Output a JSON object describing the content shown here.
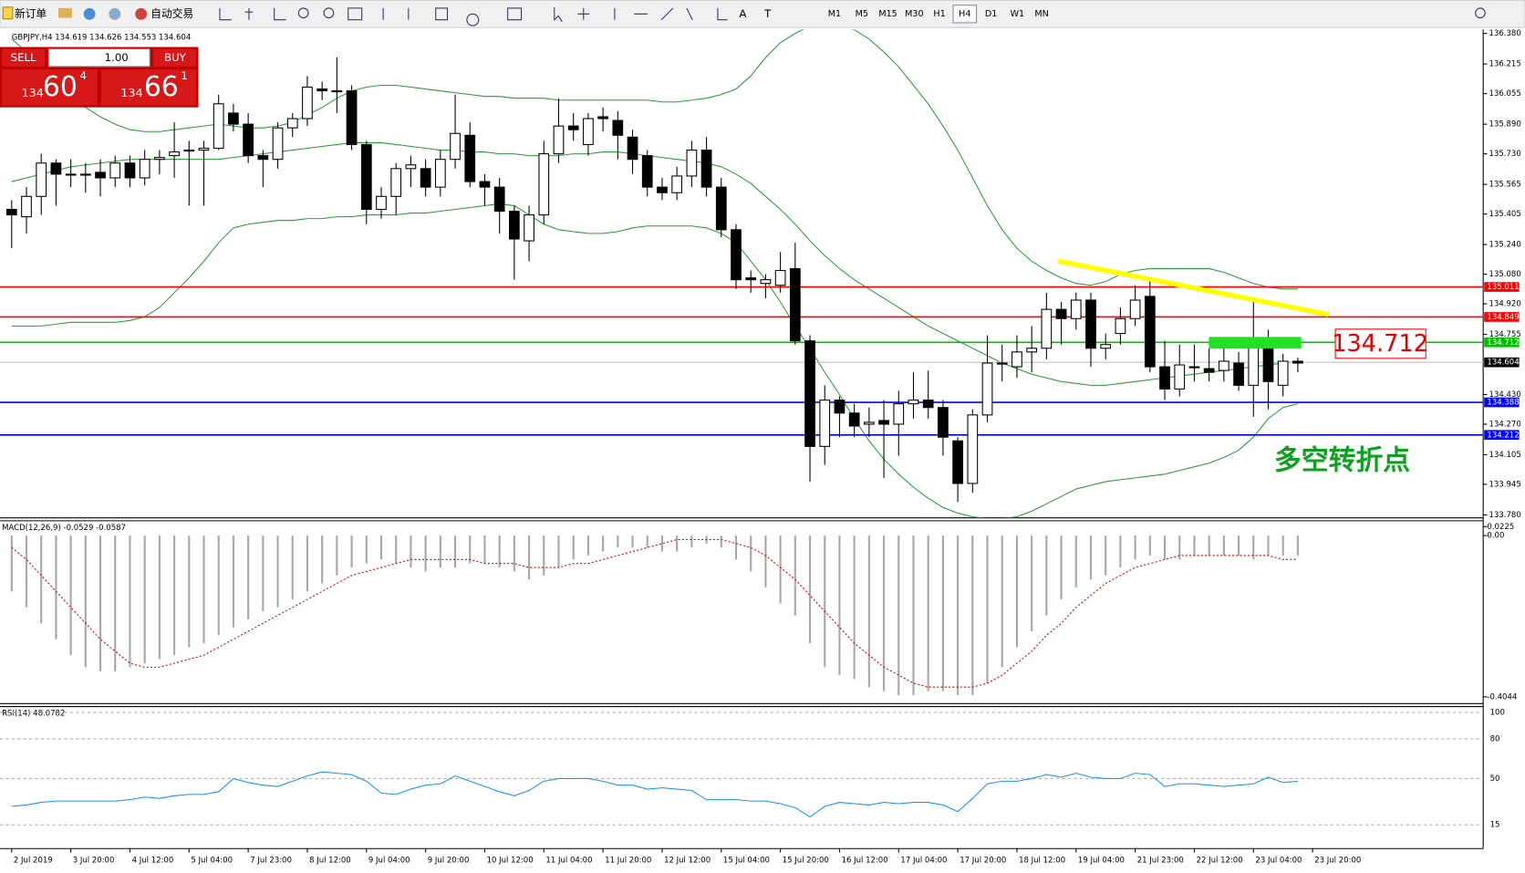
{
  "toolbar": {
    "new_order": "新订单",
    "auto_trading": "自动交易",
    "timeframes": [
      "M1",
      "M5",
      "M15",
      "M30",
      "H1",
      "H4",
      "D1",
      "W1",
      "MN"
    ]
  },
  "chart_header": "GBPJPY,H4  134.619 134.626 134.553 134.604",
  "trade_panel": {
    "sell": "SELL",
    "lots": "1.00",
    "buy": "BUY",
    "bid": {
      "big": "134",
      "pips": "60",
      "frac": "4"
    },
    "ask": {
      "big": "134",
      "pips": "66",
      "frac": "1"
    }
  },
  "price_chart": {
    "ylim": [
      133.78,
      136.38
    ],
    "yticks": [
      {
        "value": 136.38,
        "label": "136.380"
      },
      136.215,
      136.055,
      {
        "value": 135.89,
        "label": "135.890"
      },
      {
        "value": 135.73,
        "label": "135.730"
      },
      135.565,
      135.405,
      {
        "value": 135.24,
        "label": "135.240"
      },
      {
        "value": 135.08,
        "label": "135.080"
      },
      {
        "value": 134.92,
        "label": "134.920"
      },
      134.755,
      {
        "value": 134.43,
        "label": "134.430"
      },
      {
        "value": 134.27,
        "label": "134.270"
      },
      134.105,
      133.945,
      {
        "value": 133.78,
        "label": "133.780"
      }
    ],
    "levels": [
      {
        "value": 135.011,
        "color": "#ff0000"
      },
      {
        "value": 134.849,
        "color": "#ff0000"
      },
      {
        "value": 134.712,
        "color": "#00c000"
      },
      {
        "value": 134.604,
        "color": "#c0c0c0"
      },
      {
        "value": 134.388,
        "color": "#0000ff"
      },
      {
        "value": 134.212,
        "color": "#0000ff"
      }
    ],
    "annotation": "多空转折点",
    "candles": [
      [
        135.43,
        135.48,
        135.22,
        135.4
      ],
      [
        135.39,
        135.55,
        135.3,
        135.5
      ],
      [
        135.5,
        135.73,
        135.4,
        135.68
      ],
      [
        135.68,
        135.7,
        135.45,
        135.62
      ],
      [
        135.62,
        135.7,
        135.55,
        135.62
      ],
      [
        135.62,
        135.68,
        135.52,
        135.62
      ],
      [
        135.63,
        135.7,
        135.5,
        135.6
      ],
      [
        135.6,
        135.72,
        135.55,
        135.68
      ],
      [
        135.68,
        135.72,
        135.55,
        135.6
      ],
      [
        135.6,
        135.75,
        135.56,
        135.7
      ],
      [
        135.7,
        135.75,
        135.62,
        135.71
      ],
      [
        135.72,
        135.9,
        135.6,
        135.74
      ],
      [
        135.75,
        135.8,
        135.45,
        135.75
      ],
      [
        135.75,
        135.8,
        135.45,
        135.76
      ],
      [
        135.76,
        136.05,
        135.75,
        136.0
      ],
      [
        135.95,
        136.0,
        135.85,
        135.89
      ],
      [
        135.89,
        135.95,
        135.68,
        135.72
      ],
      [
        135.72,
        135.75,
        135.55,
        135.7
      ],
      [
        135.7,
        135.9,
        135.65,
        135.87
      ],
      [
        135.87,
        135.95,
        135.82,
        135.92
      ],
      [
        135.92,
        136.15,
        135.88,
        136.09
      ],
      [
        136.08,
        136.12,
        136.02,
        136.07
      ],
      [
        136.07,
        136.25,
        135.95,
        136.07
      ],
      [
        136.07,
        136.1,
        135.75,
        135.78
      ],
      [
        135.78,
        135.8,
        135.35,
        135.43
      ],
      [
        135.43,
        135.55,
        135.38,
        135.5
      ],
      [
        135.5,
        135.68,
        135.4,
        135.65
      ],
      [
        135.65,
        135.72,
        135.55,
        135.67
      ],
      [
        135.65,
        135.7,
        135.5,
        135.55
      ],
      [
        135.55,
        135.75,
        135.5,
        135.7
      ],
      [
        135.7,
        136.05,
        135.65,
        135.84
      ],
      [
        135.83,
        135.9,
        135.55,
        135.58
      ],
      [
        135.58,
        135.62,
        135.45,
        135.55
      ],
      [
        135.55,
        135.6,
        135.3,
        135.42
      ],
      [
        135.42,
        135.45,
        135.05,
        135.27
      ],
      [
        135.26,
        135.45,
        135.15,
        135.4
      ],
      [
        135.4,
        135.8,
        135.35,
        135.73
      ],
      [
        135.73,
        136.03,
        135.68,
        135.88
      ],
      [
        135.88,
        135.95,
        135.8,
        135.86
      ],
      [
        135.78,
        135.95,
        135.72,
        135.92
      ],
      [
        135.93,
        135.98,
        135.85,
        135.92
      ],
      [
        135.91,
        135.96,
        135.7,
        135.83
      ],
      [
        135.82,
        135.86,
        135.62,
        135.7
      ],
      [
        135.72,
        135.75,
        135.5,
        135.55
      ],
      [
        135.55,
        135.6,
        135.48,
        135.52
      ],
      [
        135.52,
        135.66,
        135.48,
        135.61
      ],
      [
        135.61,
        135.8,
        135.55,
        135.75
      ],
      [
        135.75,
        135.82,
        135.5,
        135.55
      ],
      [
        135.55,
        135.6,
        135.28,
        135.32
      ],
      [
        135.32,
        135.35,
        135.0,
        135.05
      ],
      [
        135.06,
        135.1,
        134.98,
        135.05
      ],
      [
        135.03,
        135.08,
        134.95,
        135.05
      ],
      [
        135.02,
        135.2,
        134.98,
        135.1
      ],
      [
        135.11,
        135.25,
        134.7,
        134.72
      ],
      [
        134.72,
        134.75,
        133.96,
        134.15
      ],
      [
        134.15,
        134.48,
        134.05,
        134.4
      ],
      [
        134.4,
        134.42,
        134.2,
        134.33
      ],
      [
        134.33,
        134.38,
        134.2,
        134.26
      ],
      [
        134.27,
        134.36,
        134.2,
        134.28
      ],
      [
        134.29,
        134.4,
        133.98,
        134.27
      ],
      [
        134.27,
        134.45,
        134.1,
        134.38
      ],
      [
        134.38,
        134.55,
        134.3,
        134.4
      ],
      [
        134.4,
        134.56,
        134.3,
        134.36
      ],
      [
        134.36,
        134.4,
        134.1,
        134.2
      ],
      [
        134.18,
        134.2,
        133.85,
        133.95
      ],
      [
        133.95,
        134.35,
        133.9,
        134.32
      ],
      [
        134.32,
        134.75,
        134.28,
        134.6
      ],
      [
        134.6,
        134.7,
        134.5,
        134.6
      ],
      [
        134.58,
        134.75,
        134.52,
        134.66
      ],
      [
        134.66,
        134.8,
        134.55,
        134.68
      ],
      [
        134.68,
        134.98,
        134.62,
        134.89
      ],
      [
        134.89,
        134.93,
        134.7,
        134.84
      ],
      [
        134.84,
        134.98,
        134.78,
        134.94
      ],
      [
        134.94,
        134.98,
        134.58,
        134.68
      ],
      [
        134.68,
        134.76,
        134.62,
        134.7
      ],
      [
        134.76,
        134.9,
        134.7,
        134.84
      ],
      [
        134.84,
        135.02,
        134.8,
        134.94
      ],
      [
        134.96,
        135.05,
        134.55,
        134.58
      ],
      [
        134.58,
        134.72,
        134.4,
        134.46
      ],
      [
        134.46,
        134.7,
        134.42,
        134.59
      ],
      [
        134.58,
        134.7,
        134.5,
        134.58
      ],
      [
        134.57,
        134.68,
        134.5,
        134.55
      ],
      [
        134.56,
        134.72,
        134.5,
        134.61
      ],
      [
        134.6,
        134.66,
        134.45,
        134.48
      ],
      [
        134.48,
        134.93,
        134.31,
        134.7
      ],
      [
        134.7,
        134.78,
        134.35,
        134.5
      ],
      [
        134.48,
        134.65,
        134.42,
        134.61
      ],
      [
        134.61,
        134.63,
        134.55,
        134.6
      ]
    ],
    "bollinger": {
      "color": "#2e9a3e",
      "upper": [
        136.35,
        136.28,
        136.2,
        136.12,
        136.05,
        135.98,
        135.93,
        135.89,
        135.86,
        135.85,
        135.85,
        135.86,
        135.87,
        135.88,
        135.89,
        135.88,
        135.87,
        135.87,
        135.88,
        135.9,
        135.94,
        135.98,
        136.03,
        136.07,
        136.09,
        136.1,
        136.1,
        136.09,
        136.08,
        136.07,
        136.06,
        136.05,
        136.04,
        136.04,
        136.03,
        136.03,
        136.03,
        136.02,
        136.02,
        136.02,
        136.02,
        136.02,
        136.02,
        136.02,
        136.01,
        136.01,
        136.02,
        136.03,
        136.05,
        136.08,
        136.15,
        136.25,
        136.33,
        136.38,
        136.42,
        136.43,
        136.42,
        136.4,
        136.35,
        136.28,
        136.2,
        136.1,
        136.0,
        135.88,
        135.75,
        135.6,
        135.45,
        135.32,
        135.22,
        135.15,
        135.1,
        135.06,
        135.03,
        135.02,
        135.04,
        135.08,
        135.1,
        135.11,
        135.11,
        135.11,
        135.11,
        135.11,
        135.09,
        135.06,
        135.03,
        135.01,
        135.0,
        135.0
      ],
      "middle": [
        135.58,
        135.6,
        135.62,
        135.64,
        135.66,
        135.67,
        135.68,
        135.69,
        135.7,
        135.7,
        135.7,
        135.7,
        135.7,
        135.7,
        135.7,
        135.71,
        135.72,
        135.73,
        135.74,
        135.75,
        135.76,
        135.77,
        135.78,
        135.79,
        135.79,
        135.79,
        135.78,
        135.77,
        135.76,
        135.75,
        135.75,
        135.74,
        135.74,
        135.73,
        135.73,
        135.72,
        135.72,
        135.72,
        135.73,
        135.73,
        135.74,
        135.74,
        135.73,
        135.72,
        135.71,
        135.7,
        135.69,
        135.68,
        135.66,
        135.62,
        135.57,
        135.5,
        135.43,
        135.35,
        135.26,
        135.18,
        135.11,
        135.05,
        135.0,
        134.95,
        134.9,
        134.85,
        134.8,
        134.76,
        134.72,
        134.68,
        134.64,
        134.6,
        134.57,
        134.54,
        134.52,
        134.5,
        134.49,
        134.48,
        134.48,
        134.49,
        134.5,
        134.51,
        134.52,
        134.53,
        134.54,
        134.55,
        134.56,
        134.57,
        134.58,
        134.59,
        134.6,
        134.61
      ],
      "lower": [
        134.8,
        134.8,
        134.8,
        134.81,
        134.82,
        134.82,
        134.82,
        134.82,
        134.83,
        134.85,
        134.9,
        134.98,
        135.06,
        135.15,
        135.25,
        135.33,
        135.35,
        135.36,
        135.37,
        135.37,
        135.38,
        135.38,
        135.39,
        135.39,
        135.4,
        135.4,
        135.4,
        135.41,
        135.41,
        135.42,
        135.43,
        135.44,
        135.45,
        135.46,
        135.45,
        135.4,
        135.35,
        135.32,
        135.31,
        135.3,
        135.3,
        135.31,
        135.33,
        135.34,
        135.34,
        135.34,
        135.34,
        135.33,
        135.3,
        135.25,
        135.15,
        135.05,
        134.93,
        134.8,
        134.68,
        134.55,
        134.43,
        134.3,
        134.18,
        134.08,
        134.0,
        133.93,
        133.87,
        133.82,
        133.79,
        133.77,
        133.76,
        133.76,
        133.77,
        133.8,
        133.84,
        133.88,
        133.92,
        133.94,
        133.96,
        133.97,
        133.98,
        133.99,
        134.0,
        134.02,
        134.04,
        134.06,
        134.09,
        134.13,
        134.2,
        134.3,
        134.36,
        134.38
      ]
    }
  },
  "macd": {
    "label": "MACD(12,26,9) -0.0529 -0.0587",
    "ylim": [
      -0.4044,
      0.0225
    ],
    "yticks": [
      0.0225,
      {
        "value": 0,
        "label": "0.00"
      },
      -0.4044
    ],
    "histogram": [
      -0.14,
      -0.18,
      -0.22,
      -0.26,
      -0.3,
      -0.33,
      -0.34,
      -0.34,
      -0.33,
      -0.32,
      -0.31,
      -0.3,
      -0.28,
      -0.27,
      -0.25,
      -0.23,
      -0.21,
      -0.19,
      -0.18,
      -0.16,
      -0.14,
      -0.12,
      -0.1,
      -0.08,
      -0.07,
      -0.06,
      -0.07,
      -0.08,
      -0.09,
      -0.08,
      -0.08,
      -0.07,
      -0.07,
      -0.08,
      -0.09,
      -0.11,
      -0.1,
      -0.08,
      -0.06,
      -0.05,
      -0.04,
      -0.03,
      -0.03,
      -0.03,
      -0.04,
      -0.04,
      -0.03,
      -0.02,
      -0.03,
      -0.06,
      -0.09,
      -0.13,
      -0.17,
      -0.2,
      -0.27,
      -0.33,
      -0.35,
      -0.36,
      -0.38,
      -0.39,
      -0.4,
      -0.4,
      -0.39,
      -0.39,
      -0.4,
      -0.4,
      -0.37,
      -0.33,
      -0.28,
      -0.24,
      -0.2,
      -0.16,
      -0.13,
      -0.11,
      -0.1,
      -0.08,
      -0.06,
      -0.05,
      -0.06,
      -0.06,
      -0.05,
      -0.05,
      -0.05,
      -0.05,
      -0.06,
      -0.05,
      -0.05,
      -0.05
    ],
    "signal": [
      -0.03,
      -0.06,
      -0.1,
      -0.14,
      -0.18,
      -0.22,
      -0.26,
      -0.29,
      -0.32,
      -0.33,
      -0.33,
      -0.32,
      -0.31,
      -0.3,
      -0.28,
      -0.26,
      -0.24,
      -0.22,
      -0.2,
      -0.18,
      -0.16,
      -0.14,
      -0.12,
      -0.1,
      -0.09,
      -0.08,
      -0.07,
      -0.06,
      -0.06,
      -0.06,
      -0.06,
      -0.06,
      -0.07,
      -0.07,
      -0.07,
      -0.08,
      -0.08,
      -0.08,
      -0.07,
      -0.07,
      -0.06,
      -0.05,
      -0.04,
      -0.03,
      -0.02,
      -0.01,
      -0.01,
      -0.01,
      -0.01,
      -0.02,
      -0.03,
      -0.05,
      -0.08,
      -0.11,
      -0.15,
      -0.19,
      -0.23,
      -0.27,
      -0.3,
      -0.33,
      -0.35,
      -0.37,
      -0.38,
      -0.38,
      -0.38,
      -0.38,
      -0.37,
      -0.35,
      -0.32,
      -0.29,
      -0.25,
      -0.22,
      -0.18,
      -0.15,
      -0.12,
      -0.1,
      -0.08,
      -0.07,
      -0.06,
      -0.05,
      -0.05,
      -0.05,
      -0.05,
      -0.05,
      -0.05,
      -0.05,
      -0.06,
      -0.06
    ]
  },
  "rsi": {
    "label": "RSI(14) 48.0782",
    "ylim": [
      0,
      100
    ],
    "yticks": [
      100,
      80,
      50,
      15
    ],
    "values": [
      29,
      30,
      32,
      33,
      33,
      33,
      33,
      33,
      34,
      36,
      35,
      37,
      38,
      38,
      40,
      50,
      47,
      45,
      44,
      48,
      52,
      55,
      54,
      53,
      48,
      39,
      38,
      42,
      45,
      46,
      52,
      48,
      44,
      40,
      37,
      41,
      48,
      50,
      50,
      50,
      48,
      45,
      45,
      42,
      43,
      42,
      41,
      34,
      34,
      34,
      33,
      33,
      31,
      28,
      21,
      29,
      32,
      31,
      30,
      32,
      31,
      32,
      32,
      30,
      25,
      35,
      46,
      48,
      48,
      50,
      53,
      51,
      54,
      51,
      50,
      50,
      54,
      53,
      44,
      46,
      46,
      45,
      44,
      45,
      46,
      51,
      47,
      48
    ]
  },
  "time_axis": [
    "2 Jul 2019",
    "3 Jul 20:00",
    "4 Jul 12:00",
    "5 Jul 04:00",
    "7 Jul 23:00",
    "8 Jul 12:00",
    "9 Jul 04:00",
    "9 Jul 20:00",
    "10 Jul 12:00",
    "11 Jul 04:00",
    "11 Jul 20:00",
    "12 Jul 12:00",
    "15 Jul 04:00",
    "15 Jul 20:00",
    "16 Jul 12:00",
    "17 Jul 04:00",
    "17 Jul 20:00",
    "18 Jul 12:00",
    "19 Jul 04:00",
    "21 Jul 23:00",
    "22 Jul 12:00",
    "23 Jul 04:00",
    "23 Jul 20:00"
  ]
}
